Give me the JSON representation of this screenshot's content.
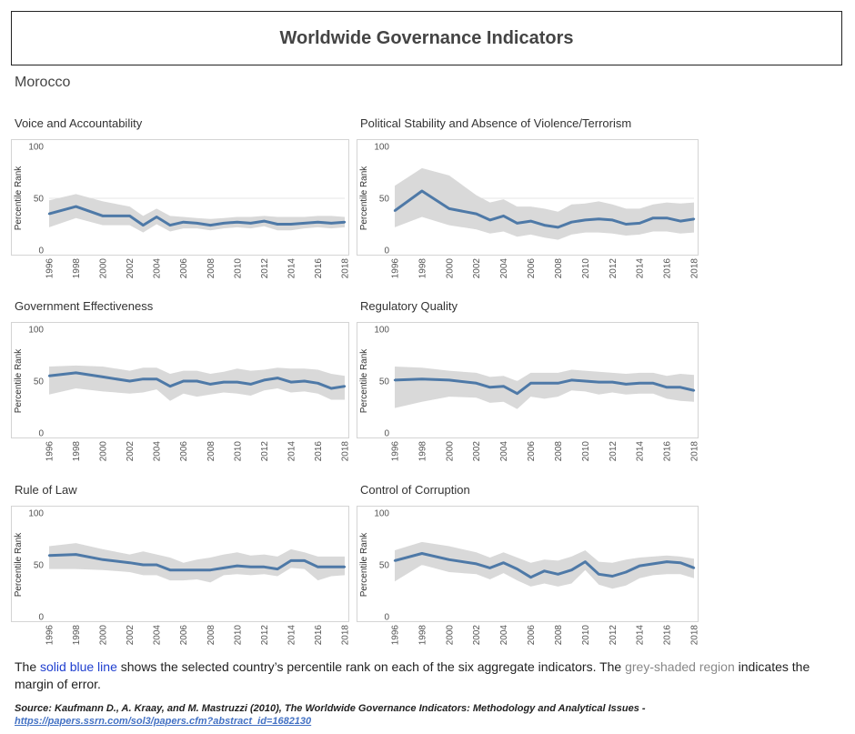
{
  "header": {
    "title": "Worldwide Governance Indicators",
    "country": "Morocco"
  },
  "caption": {
    "part1": "The ",
    "blue_label": "solid blue line",
    "part2": " shows the selected country’s percentile rank on each of the six aggregate indicators.  The ",
    "grey_label": "grey-shaded region",
    "part3": " indicates the margin of error."
  },
  "source": {
    "text": "Source: Kaufmann D., A. Kraay, and M. Mastruzzi (2010), The Worldwide Governance Indicators: Methodology and Analytical Issues -",
    "link": "https://papers.ssrn.com/sol3/papers.cfm?abstract_id=1682130"
  },
  "colors": {
    "line": "#4e79a7",
    "band": "#d9d9d9",
    "grid": "#e6e6e6"
  },
  "chart_data": [
    {
      "type": "line",
      "title": "Voice and Accountability",
      "ylabel": "Percentile Rank",
      "ylim": [
        0,
        100
      ],
      "yticks": [
        0,
        50,
        100
      ],
      "xticks": [
        "1996",
        "1998",
        "2000",
        "2002",
        "2004",
        "2006",
        "2008",
        "2010",
        "2012",
        "2014",
        "2016",
        "2018"
      ],
      "x": [
        1996,
        1998,
        2000,
        2002,
        2003,
        2004,
        2005,
        2006,
        2007,
        2008,
        2009,
        2010,
        2011,
        2012,
        2013,
        2014,
        2015,
        2016,
        2017,
        2018
      ],
      "series": [
        {
          "values": [
            35,
            42,
            33,
            33,
            24,
            32,
            24,
            27,
            26,
            24,
            26,
            27,
            26,
            28,
            25,
            25,
            26,
            27,
            26,
            27
          ]
        }
      ],
      "band_upper": [
        48,
        54,
        47,
        42,
        33,
        40,
        33,
        32,
        31,
        30,
        31,
        32,
        32,
        33,
        32,
        32,
        32,
        33,
        33,
        32
      ],
      "band_lower": [
        22,
        31,
        24,
        24,
        17,
        25,
        18,
        21,
        21,
        19,
        21,
        22,
        21,
        23,
        19,
        19,
        21,
        22,
        21,
        22
      ]
    },
    {
      "type": "line",
      "title": "Political Stability and Absence of Violence/Terrorism",
      "ylabel": "Percentile Rank",
      "ylim": [
        0,
        100
      ],
      "yticks": [
        0,
        50,
        100
      ],
      "xticks": [
        "1996",
        "1998",
        "2000",
        "2002",
        "2004",
        "2006",
        "2008",
        "2010",
        "2012",
        "2014",
        "2016",
        "2018"
      ],
      "x": [
        1996,
        1998,
        2000,
        2002,
        2003,
        2004,
        2005,
        2006,
        2007,
        2008,
        2009,
        2010,
        2011,
        2012,
        2013,
        2014,
        2015,
        2016,
        2017,
        2018
      ],
      "series": [
        {
          "values": [
            38,
            57,
            40,
            35,
            29,
            33,
            26,
            28,
            24,
            22,
            27,
            29,
            30,
            29,
            25,
            26,
            31,
            31,
            28,
            30
          ]
        }
      ],
      "band_upper": [
        62,
        79,
        72,
        53,
        46,
        49,
        42,
        42,
        40,
        37,
        44,
        45,
        47,
        44,
        40,
        40,
        44,
        46,
        45,
        46
      ],
      "band_lower": [
        22,
        32,
        24,
        20,
        16,
        18,
        13,
        15,
        12,
        10,
        15,
        17,
        17,
        16,
        14,
        15,
        18,
        18,
        16,
        17
      ]
    },
    {
      "type": "line",
      "title": "Government Effectiveness",
      "ylabel": "Percentile Rank",
      "ylim": [
        0,
        100
      ],
      "yticks": [
        0,
        50,
        100
      ],
      "xticks": [
        "1996",
        "1998",
        "2000",
        "2002",
        "2004",
        "2006",
        "2008",
        "2010",
        "2012",
        "2014",
        "2016",
        "2018"
      ],
      "x": [
        1996,
        1998,
        2000,
        2002,
        2003,
        2004,
        2005,
        2006,
        2007,
        2008,
        2009,
        2010,
        2011,
        2012,
        2013,
        2014,
        2015,
        2016,
        2017,
        2018
      ],
      "series": [
        {
          "values": [
            55,
            58,
            54,
            50,
            52,
            52,
            45,
            50,
            50,
            47,
            49,
            49,
            47,
            51,
            53,
            49,
            50,
            48,
            43,
            45
          ]
        }
      ],
      "band_upper": [
        64,
        65,
        64,
        60,
        63,
        63,
        57,
        60,
        60,
        57,
        59,
        62,
        60,
        61,
        63,
        62,
        62,
        61,
        57,
        55
      ],
      "band_lower": [
        37,
        43,
        40,
        38,
        39,
        42,
        31,
        38,
        35,
        37,
        39,
        38,
        36,
        41,
        43,
        39,
        40,
        38,
        32,
        32
      ]
    },
    {
      "type": "line",
      "title": "Regulatory Quality",
      "ylabel": "Percentile Rank",
      "ylim": [
        0,
        100
      ],
      "yticks": [
        0,
        50,
        100
      ],
      "xticks": [
        "1996",
        "1998",
        "2000",
        "2002",
        "2004",
        "2006",
        "2008",
        "2010",
        "2012",
        "2014",
        "2016",
        "2018"
      ],
      "x": [
        1996,
        1998,
        2000,
        2002,
        2003,
        2004,
        2005,
        2006,
        2007,
        2008,
        2009,
        2010,
        2011,
        2012,
        2013,
        2014,
        2015,
        2016,
        2017,
        2018
      ],
      "series": [
        {
          "values": [
            51,
            52,
            51,
            48,
            44,
            45,
            38,
            48,
            48,
            48,
            51,
            50,
            49,
            49,
            47,
            48,
            48,
            44,
            44,
            41
          ]
        }
      ],
      "band_upper": [
        64,
        63,
        60,
        58,
        54,
        55,
        50,
        58,
        58,
        58,
        61,
        60,
        59,
        58,
        57,
        58,
        58,
        55,
        57,
        56
      ],
      "band_lower": [
        24,
        30,
        35,
        34,
        29,
        30,
        23,
        35,
        33,
        35,
        41,
        40,
        37,
        39,
        37,
        38,
        38,
        33,
        31,
        30
      ]
    },
    {
      "type": "line",
      "title": "Rule of Law",
      "ylabel": "Percentile Rank",
      "ylim": [
        0,
        100
      ],
      "yticks": [
        0,
        50,
        100
      ],
      "xticks": [
        "1996",
        "1998",
        "2000",
        "2002",
        "2004",
        "2006",
        "2008",
        "2010",
        "2012",
        "2014",
        "2016",
        "2018"
      ],
      "x": [
        1996,
        1998,
        2000,
        2002,
        2003,
        2004,
        2005,
        2006,
        2007,
        2008,
        2009,
        2010,
        2011,
        2012,
        2013,
        2014,
        2015,
        2016,
        2017,
        2018
      ],
      "series": [
        {
          "values": [
            59,
            60,
            55,
            52,
            50,
            50,
            45,
            45,
            45,
            45,
            47,
            49,
            48,
            48,
            46,
            54,
            54,
            48,
            48,
            48
          ]
        }
      ],
      "band_upper": [
        68,
        71,
        65,
        60,
        63,
        60,
        57,
        52,
        55,
        57,
        60,
        62,
        59,
        60,
        58,
        65,
        62,
        58,
        58,
        58
      ],
      "band_lower": [
        46,
        46,
        45,
        43,
        40,
        40,
        35,
        35,
        36,
        33,
        40,
        41,
        40,
        41,
        39,
        47,
        46,
        35,
        39,
        40
      ]
    },
    {
      "type": "line",
      "title": "Control of Corruption",
      "ylabel": "Percentile Rank",
      "ylim": [
        0,
        100
      ],
      "yticks": [
        0,
        50,
        100
      ],
      "xticks": [
        "1996",
        "1998",
        "2000",
        "2002",
        "2004",
        "2006",
        "2008",
        "2010",
        "2012",
        "2014",
        "2016",
        "2018"
      ],
      "x": [
        1996,
        1998,
        2000,
        2002,
        2003,
        2004,
        2005,
        2006,
        2007,
        2008,
        2009,
        2010,
        2011,
        2012,
        2013,
        2014,
        2015,
        2016,
        2017,
        2018
      ],
      "series": [
        {
          "values": [
            54,
            61,
            55,
            51,
            47,
            52,
            46,
            38,
            44,
            41,
            45,
            53,
            41,
            39,
            43,
            49,
            51,
            53,
            52,
            47
          ]
        }
      ],
      "band_upper": [
        64,
        72,
        68,
        62,
        57,
        62,
        57,
        52,
        55,
        54,
        58,
        64,
        53,
        52,
        55,
        57,
        58,
        59,
        58,
        56
      ],
      "band_lower": [
        34,
        50,
        43,
        41,
        36,
        42,
        35,
        29,
        32,
        29,
        32,
        45,
        31,
        27,
        30,
        37,
        40,
        41,
        41,
        37
      ]
    }
  ]
}
